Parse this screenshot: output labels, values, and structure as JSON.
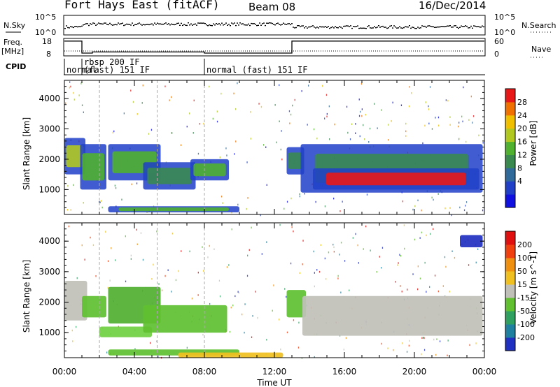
{
  "header": {
    "station": "Fort Hays East (fitACF)",
    "beam": "Beam 08",
    "date": "16/Dec/2014"
  },
  "panels": {
    "nsky_label": "N.Sky",
    "nsearch_label": "N.Search",
    "freq_label_top": "Freq.",
    "freq_label_unit": "[MHz]",
    "nave_label": "Nave",
    "cpid_label": "CPID",
    "nsky_ticks": [
      "10^5",
      "10^0"
    ],
    "nsearch_ticks": [
      "10^5",
      "10^0"
    ],
    "freq_ticks": [
      "18",
      "8"
    ],
    "nave_ticks": [
      "60",
      "0"
    ],
    "cpid_segments": [
      {
        "text": "normal",
        "start_hour": 0.0,
        "end_hour": 1.0
      },
      {
        "text": "rbsp 200 IF",
        "start_hour": 1.0,
        "end_hour": 8.0
      },
      {
        "text": "(fast) 151 IF",
        "start_hour": 1.0,
        "end_hour": 8.0
      },
      {
        "text": "normal (fast) 151 IF",
        "start_hour": 8.0,
        "end_hour": 24.0
      }
    ],
    "freq_trace": [
      [
        0,
        17.6
      ],
      [
        1.0,
        17.6
      ],
      [
        1.0,
        9.0
      ],
      [
        1.6,
        9.0
      ],
      [
        1.6,
        9.8
      ],
      [
        8.0,
        9.8
      ],
      [
        8.0,
        9.0
      ],
      [
        13.0,
        9.0
      ],
      [
        13.0,
        17.6
      ],
      [
        24,
        17.6
      ]
    ]
  },
  "chart_data": [
    {
      "type": "heatmap",
      "title": "Power",
      "ylabel": "Slant Range [km]",
      "xlabel": "Time UT",
      "x_ticks": [
        "00:00",
        "04:00",
        "08:00",
        "12:00",
        "16:00",
        "20:00",
        "00:00"
      ],
      "y_ticks": [
        "1000",
        "2000",
        "3000",
        "4000"
      ],
      "xlim_hours": [
        0,
        24
      ],
      "ylim_km": [
        180,
        4600
      ],
      "colorbar_label": "Power [dB]",
      "colorbar_ticks": [
        "28",
        "24",
        "20",
        "16",
        "12",
        "8",
        "4"
      ],
      "colorbar_colors": [
        "#1010e0",
        "#2040c8",
        "#306a9a",
        "#3a8a50",
        "#50b030",
        "#b0c820",
        "#f0c000",
        "#f07000",
        "#e81818"
      ],
      "regions": [
        {
          "t0": 0.0,
          "t1": 1.2,
          "r0": 1500,
          "r1": 2700,
          "level": 5
        },
        {
          "t0": 0.9,
          "t1": 2.4,
          "r0": 1000,
          "r1": 2500,
          "level": 4
        },
        {
          "t0": 2.5,
          "t1": 5.5,
          "r0": 1300,
          "r1": 2500,
          "level": 4
        },
        {
          "t0": 4.5,
          "t1": 7.5,
          "r0": 1000,
          "r1": 1900,
          "level": 3
        },
        {
          "t0": 7.2,
          "t1": 9.4,
          "r0": 1300,
          "r1": 2000,
          "level": 4
        },
        {
          "t0": 2.5,
          "t1": 10.0,
          "r0": 250,
          "r1": 450,
          "level": 4
        },
        {
          "t0": 12.7,
          "t1": 13.7,
          "r0": 1500,
          "r1": 2400,
          "level": 3
        },
        {
          "t0": 13.5,
          "t1": 23.9,
          "r0": 900,
          "r1": 2500,
          "level": 3
        },
        {
          "t0": 14.2,
          "t1": 23.7,
          "r0": 1000,
          "r1": 1700,
          "level": 8
        }
      ]
    },
    {
      "type": "heatmap",
      "title": "Velocity",
      "ylabel": "Slant Range [km]",
      "xlabel": "Time UT",
      "x_ticks": [
        "00:00",
        "04:00",
        "08:00",
        "12:00",
        "16:00",
        "20:00",
        "00:00"
      ],
      "y_ticks": [
        "1000",
        "2000",
        "3000",
        "4000"
      ],
      "xlim_hours": [
        0,
        24
      ],
      "ylim_km": [
        180,
        4600
      ],
      "colorbar_label": "Velocity [m s^-1]",
      "colorbar_ticks": [
        "200",
        "100",
        "50",
        "15",
        "-15",
        "-50",
        "-100",
        "-200"
      ],
      "colorbar_colors": [
        "#2030c0",
        "#2080a0",
        "#30a060",
        "#60c030",
        "#c0c0b8",
        "#f0c020",
        "#f09010",
        "#f04010",
        "#e01010"
      ],
      "regions": [
        {
          "t0": 0.0,
          "t1": 1.3,
          "r0": 1400,
          "r1": 2700,
          "color": "#c0c0b8"
        },
        {
          "t0": 1.0,
          "t1": 2.4,
          "r0": 1500,
          "r1": 2200,
          "color": "#60c030"
        },
        {
          "t0": 2.5,
          "t1": 5.5,
          "r0": 1300,
          "r1": 2500,
          "color": "#50b030"
        },
        {
          "t0": 2.0,
          "t1": 5.0,
          "r0": 850,
          "r1": 1200,
          "color": "#70d040"
        },
        {
          "t0": 4.5,
          "t1": 9.3,
          "r0": 1000,
          "r1": 1900,
          "color": "#60c030"
        },
        {
          "t0": 2.5,
          "t1": 10.0,
          "r0": 250,
          "r1": 450,
          "color": "#60c030"
        },
        {
          "t0": 6.5,
          "t1": 12.5,
          "r0": 180,
          "r1": 350,
          "color": "#f0c020"
        },
        {
          "t0": 12.7,
          "t1": 13.8,
          "r0": 1500,
          "r1": 2400,
          "color": "#60c030"
        },
        {
          "t0": 13.6,
          "t1": 23.9,
          "r0": 900,
          "r1": 2200,
          "color": "#c0c0b8"
        },
        {
          "t0": 22.6,
          "t1": 23.9,
          "r0": 3800,
          "r1": 4200,
          "color": "#2030c0"
        }
      ]
    }
  ]
}
